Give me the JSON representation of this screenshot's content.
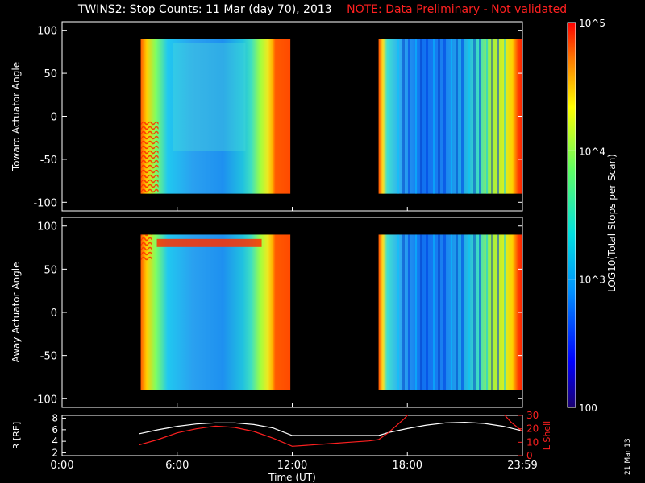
{
  "header": {
    "title": "TWINS2: Stop Counts: 11 Mar (day  70), 2013",
    "note": "NOTE: Data Preliminary - Not validated"
  },
  "side_date": "21 Mar 13",
  "chart_data": [
    {
      "type": "heatmap",
      "ylabel": "Toward Actuator Angle",
      "ylim": [
        -110,
        110
      ],
      "yticks": [
        100,
        50,
        0,
        -50,
        -100
      ],
      "xlim": [
        0,
        24
      ],
      "x_spans": [
        [
          4.1,
          11.9
        ],
        [
          16.5,
          24.0
        ]
      ],
      "y_extent": [
        -90,
        90
      ],
      "colorscale": "log",
      "grid": false
    },
    {
      "type": "heatmap",
      "ylabel": "Away Actuator Angle",
      "ylim": [
        -110,
        110
      ],
      "yticks": [
        100,
        50,
        0,
        -50,
        -100
      ],
      "xlim": [
        0,
        24
      ],
      "x_spans": [
        [
          4.1,
          11.9
        ],
        [
          16.5,
          24.0
        ]
      ],
      "y_extent": [
        -90,
        90
      ],
      "colorscale": "log",
      "grid": false
    },
    {
      "type": "line",
      "xlabel": "Time (UT)",
      "xticks": [
        "0:00",
        "6:00",
        "12:00",
        "18:00",
        "23:59"
      ],
      "xtick_values": [
        0,
        6,
        12,
        18,
        24
      ],
      "left_axis": {
        "label": "R [RE]",
        "ylim": [
          1.5,
          8.5
        ],
        "yticks": [
          2,
          4,
          6,
          8
        ],
        "color": "#ffffff"
      },
      "right_axis": {
        "label": "L Shell",
        "ylim": [
          0,
          30
        ],
        "yticks": [
          0,
          10,
          20,
          30
        ],
        "color": "#ff2020"
      },
      "series": [
        {
          "axis": "left",
          "color": "#ffffff",
          "x": [
            4.0,
            5.0,
            6.0,
            7.0,
            8.0,
            9.0,
            10.0,
            11.0,
            12.0,
            13.0,
            14.0,
            15.0,
            16.0,
            16.5,
            17.0,
            18.0,
            19.0,
            20.0,
            21.0,
            22.0,
            23.0,
            24.0
          ],
          "values": [
            5.3,
            6.0,
            6.6,
            7.0,
            7.2,
            7.2,
            6.9,
            6.3,
            5.0,
            5.0,
            5.0,
            5.0,
            5.0,
            5.0,
            5.5,
            6.2,
            6.8,
            7.2,
            7.3,
            7.1,
            6.6,
            5.8
          ]
        },
        {
          "axis": "right",
          "color": "#ff2020",
          "x": [
            4.0,
            5.0,
            6.0,
            7.0,
            8.0,
            9.0,
            10.0,
            11.0,
            12.0,
            13.0,
            14.0,
            15.0,
            16.0,
            16.5,
            17.0,
            17.8,
            18.2
          ],
          "values": [
            8,
            12,
            17,
            20,
            22,
            21,
            18,
            13,
            7,
            8,
            9,
            10,
            11,
            12,
            17,
            27,
            33
          ]
        },
        {
          "axis": "right",
          "color": "#ff2020",
          "x": [
            22.9,
            23.4,
            24.0
          ],
          "values": [
            33,
            25,
            18
          ]
        }
      ]
    }
  ],
  "colorbar": {
    "label": "LOG10(Total Stops per Scan)",
    "tick_labels": [
      "10^5",
      "10^4",
      "10^3",
      "100"
    ],
    "tick_values": [
      100000,
      10000,
      1000,
      100
    ],
    "range": [
      100,
      100000
    ],
    "scale": "log"
  },
  "colors": {
    "background": "#000000",
    "axes": "#ffffff",
    "note": "#ff2020"
  }
}
